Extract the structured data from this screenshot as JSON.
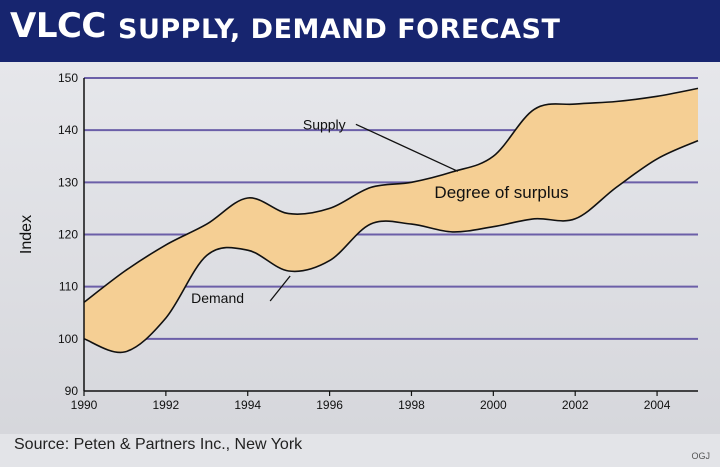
{
  "title": {
    "main": "VLCC",
    "sub": "SUPPLY, DEMAND FORECAST"
  },
  "source": "Source: Peten & Partners Inc., New York",
  "credit": "OGJ",
  "colors": {
    "header": "#17256f",
    "band": "#f5cf94",
    "grid": "#6b5fa8",
    "curve": "#111111",
    "background": "#e3e4e8"
  },
  "chart_data": {
    "type": "area",
    "ylabel": "Index",
    "xlabel": "",
    "xlim": [
      1990,
      2005
    ],
    "ylim": [
      90,
      150
    ],
    "yticks": [
      90,
      100,
      110,
      120,
      130,
      140,
      150
    ],
    "xticks": [
      1990,
      1992,
      1994,
      1996,
      1998,
      2000,
      2002,
      2004
    ],
    "grid": "horizontal",
    "series": [
      {
        "name": "Supply",
        "x": [
          1990,
          1991,
          1992,
          1993,
          1994,
          1995,
          1996,
          1997,
          1998,
          1999,
          2000,
          2001,
          2002,
          2003,
          2004,
          2005
        ],
        "values": [
          107,
          113,
          118,
          122,
          127,
          124,
          125,
          129,
          130,
          132,
          135,
          144,
          145,
          145.5,
          146.5,
          148
        ]
      },
      {
        "name": "Demand",
        "x": [
          1990,
          1991,
          1992,
          1993,
          1994,
          1995,
          1996,
          1997,
          1998,
          1999,
          2000,
          2001,
          2002,
          2003,
          2004,
          2005
        ],
        "values": [
          100,
          97.5,
          104,
          116,
          117,
          113,
          115,
          122,
          122,
          120.5,
          121.5,
          123,
          123,
          129,
          134.5,
          138
        ]
      }
    ],
    "annotations": [
      {
        "text": "Supply",
        "x": 1999.5,
        "y": 132.5
      },
      {
        "text": "Demand",
        "x": 1995.5,
        "y": 113
      },
      {
        "text": "Degree of surplus",
        "x": 2000.2,
        "y": 127
      }
    ]
  }
}
